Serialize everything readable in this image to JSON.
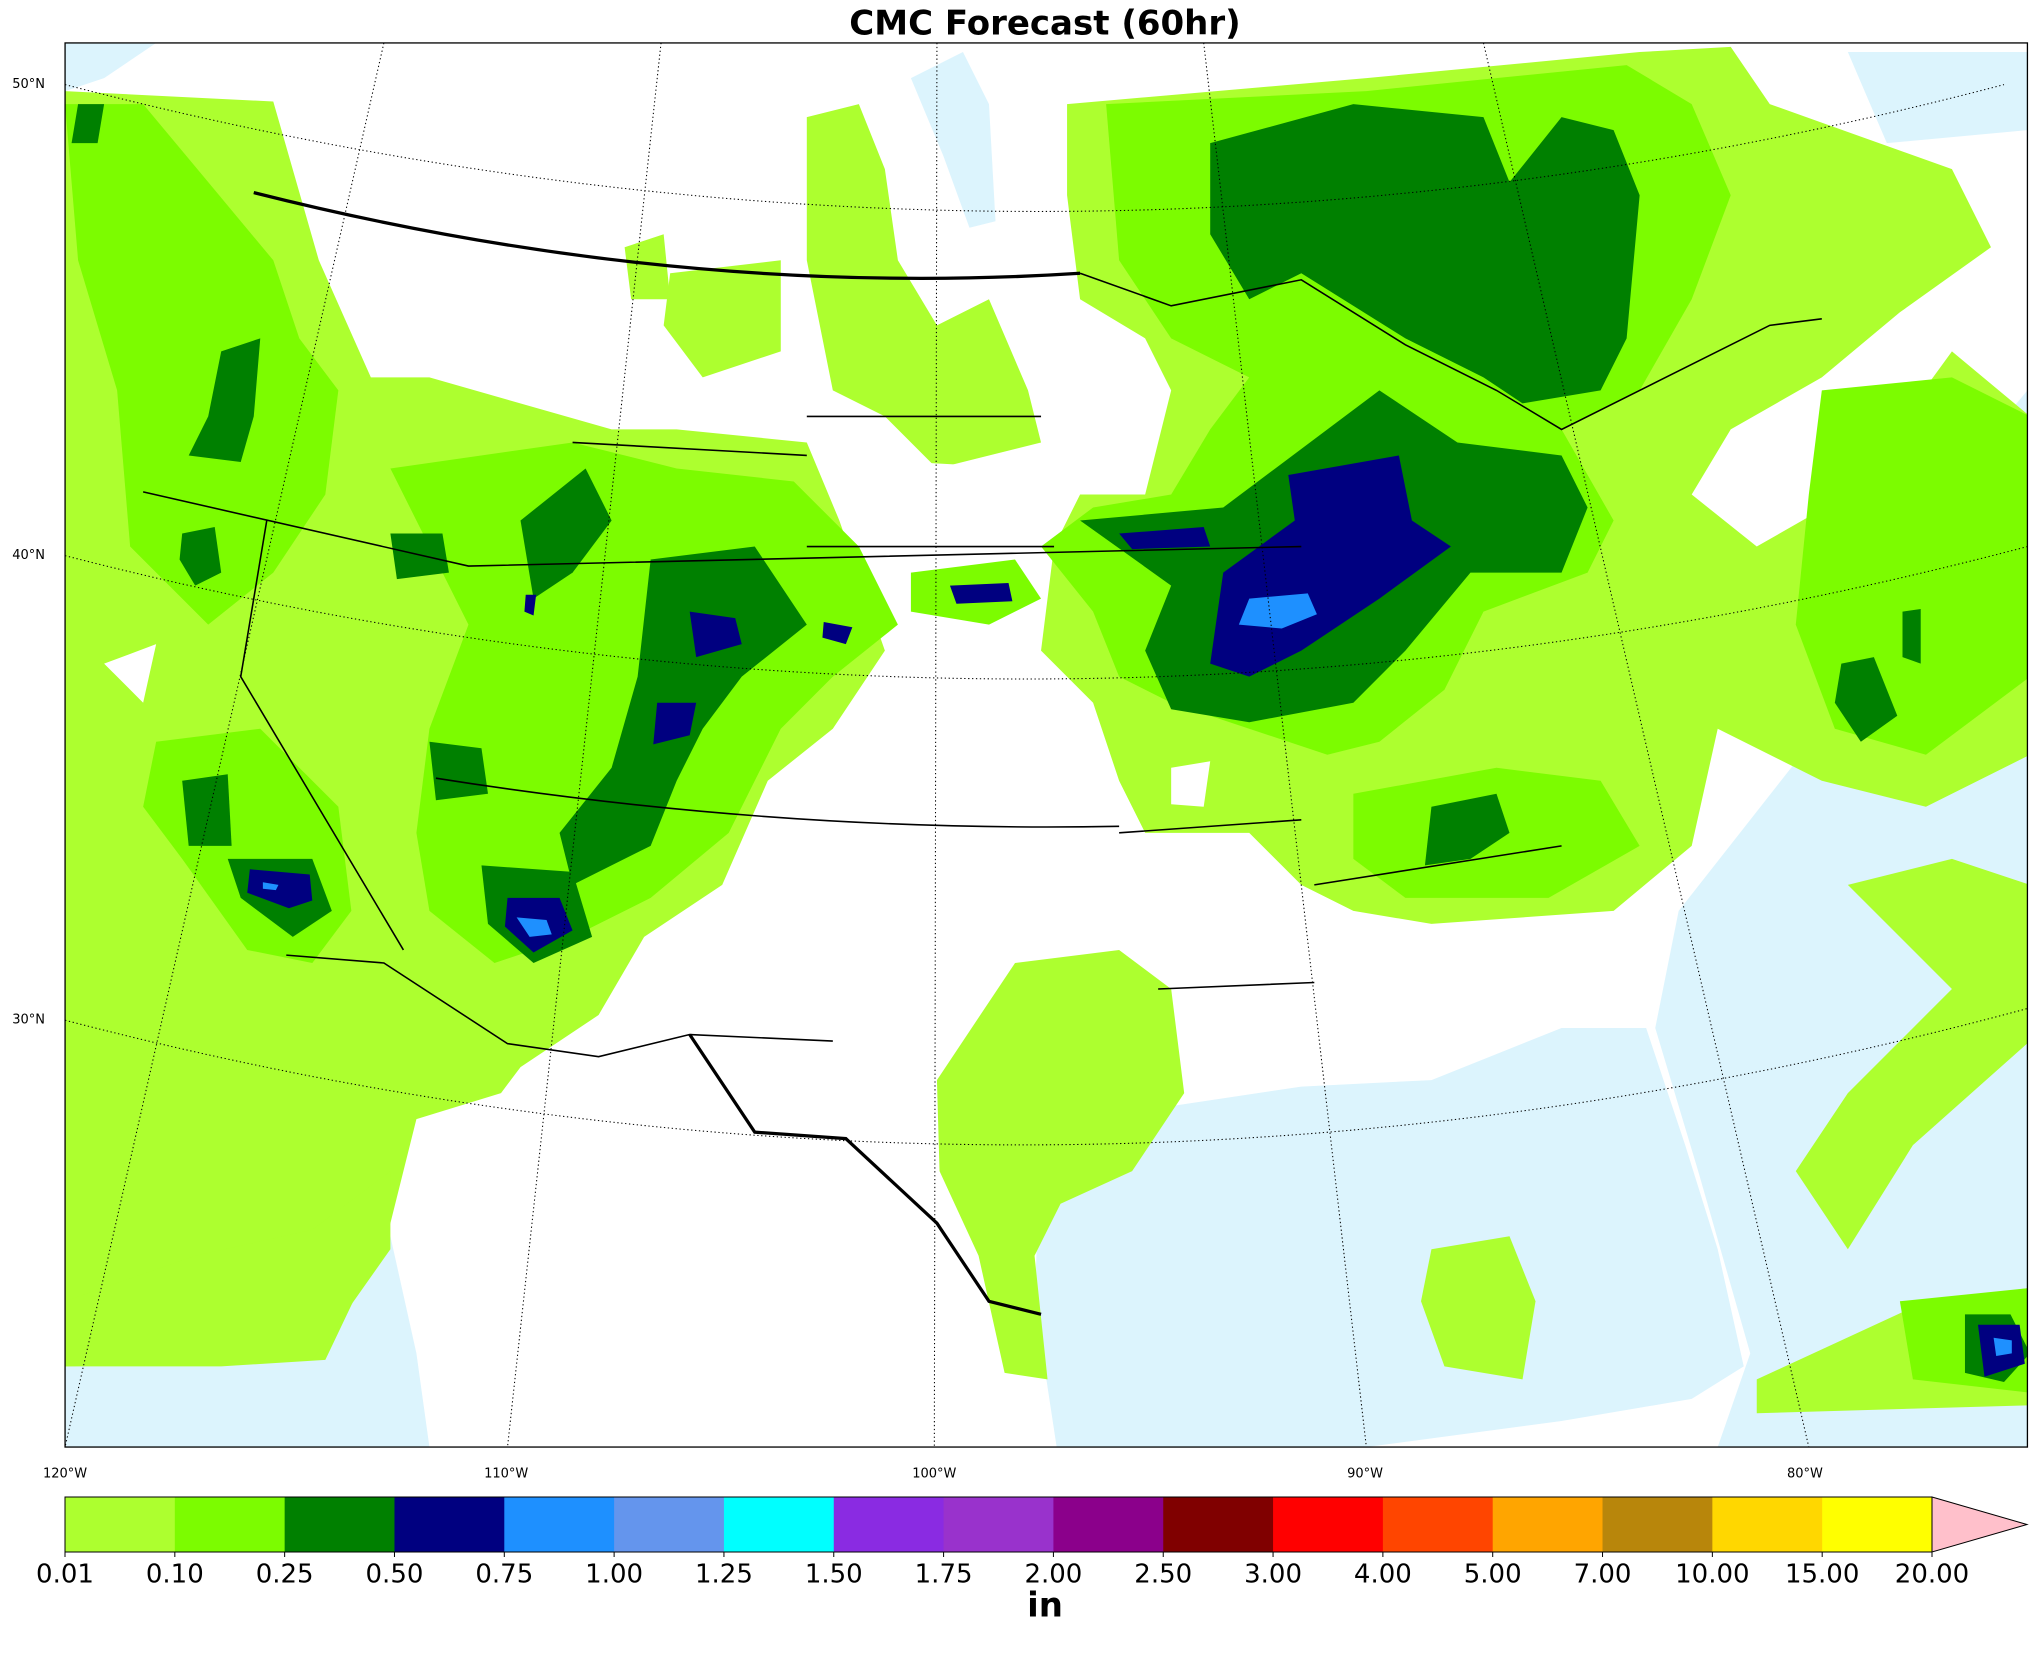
{
  "title": "CMC Forecast (60hr)",
  "map": {
    "lat_labels": [
      "50°N",
      "40°N",
      "30°N"
    ],
    "lon_labels": [
      "120°W",
      "110°W",
      "100°W",
      "90°W",
      "80°W"
    ]
  },
  "colorbar": {
    "ticks": [
      0.01,
      {
        "value": 0.1,
        "label": "0.10"
      },
      0.25,
      {
        "value": 0.5,
        "label": "0.50"
      },
      0.75,
      {
        "value": 1,
        "label": "1.00"
      },
      1.25,
      {
        "value": 1.5,
        "label": "1.50"
      },
      1.75,
      {
        "value": 2,
        "label": "2.00"
      },
      {
        "value": 2.5,
        "label": "2.50"
      },
      {
        "value": 3,
        "label": "3.00"
      },
      {
        "value": 4,
        "label": "4.00"
      },
      {
        "value": 5,
        "label": "5.00"
      },
      {
        "value": 7,
        "label": "7.00"
      },
      {
        "value": 10,
        "label": "10.00"
      },
      {
        "value": 15,
        "label": "15.00"
      },
      {
        "value": 20,
        "label": "20.00"
      }
    ],
    "colors": [
      "#adff2f",
      "#7cfc00",
      "#008000",
      "#000080",
      "#1e90ff",
      "#6495ed",
      "#00ffff",
      "#8a2be2",
      "#9932cc",
      "#8b008b",
      "#800000",
      "#ff0000",
      "#ff4500",
      "#ffa500",
      "#b8860b",
      "#ffd700",
      "#ffff00"
    ],
    "extend_color": "#ffc0cb",
    "unit": "in"
  }
}
